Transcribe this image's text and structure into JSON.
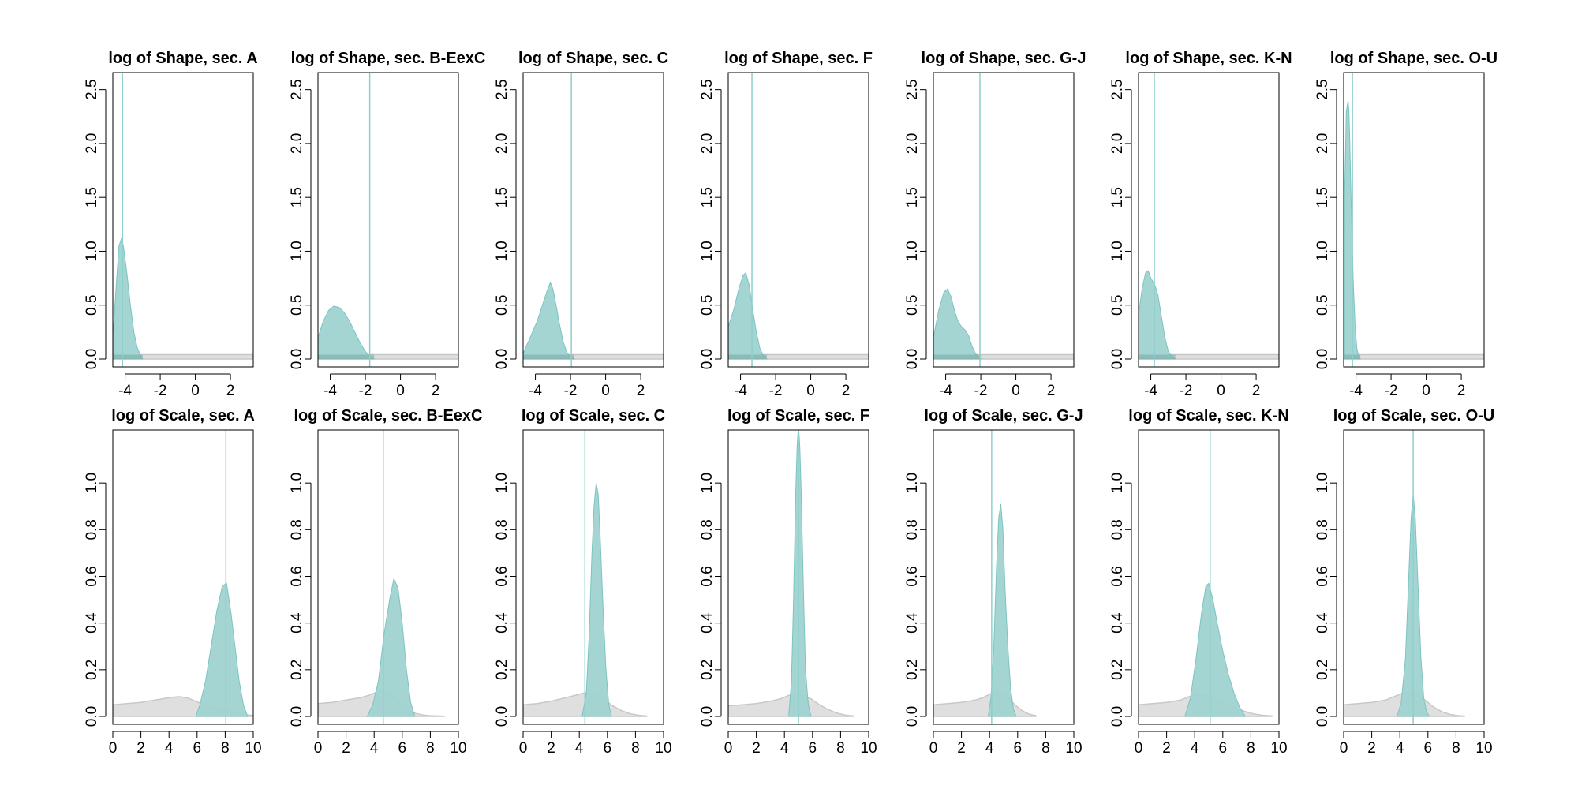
{
  "colors": {
    "posterior": "#9fd3d1",
    "posterior_edge": "#7cc4c1",
    "prior": "#d9d9d9",
    "vline": "#8ecfcc",
    "overlap": "#7aa7a5"
  },
  "chart_data": [
    {
      "type": "area",
      "title": "log of Shape, sec. A",
      "xlim": [
        -4.7,
        3.3
      ],
      "ylim": [
        0,
        2.6
      ],
      "xticks": [
        -4,
        -2,
        0,
        2
      ],
      "yticks": [
        0.0,
        0.5,
        1.0,
        1.5,
        2.0,
        2.5
      ],
      "vline": -4.15,
      "posterior": {
        "x": [
          -4.7,
          -4.5,
          -4.35,
          -4.2,
          -4.1,
          -3.9,
          -3.7,
          -3.5,
          -3.3,
          -3.1,
          -3.0
        ],
        "y": [
          0.2,
          0.7,
          1.05,
          1.12,
          1.05,
          0.8,
          0.5,
          0.25,
          0.1,
          0.03,
          0
        ]
      },
      "prior": {
        "x": [
          -4.7,
          3.3
        ],
        "y": [
          0.04,
          0.04
        ]
      }
    },
    {
      "type": "area",
      "title": "log of Shape, sec. B-EexC",
      "xlim": [
        -4.7,
        3.3
      ],
      "ylim": [
        0,
        2.6
      ],
      "xticks": [
        -4,
        -2,
        0,
        2
      ],
      "yticks": [
        0.0,
        0.5,
        1.0,
        1.5,
        2.0,
        2.5
      ],
      "vline": -1.75,
      "posterior": {
        "x": [
          -4.7,
          -4.4,
          -4.1,
          -3.8,
          -3.5,
          -3.2,
          -2.9,
          -2.6,
          -2.3,
          -2.0,
          -1.7,
          -1.5
        ],
        "y": [
          0.2,
          0.35,
          0.45,
          0.49,
          0.48,
          0.43,
          0.35,
          0.25,
          0.15,
          0.07,
          0.02,
          0
        ]
      },
      "prior": {
        "x": [
          -4.7,
          3.3
        ],
        "y": [
          0.04,
          0.04
        ]
      }
    },
    {
      "type": "area",
      "title": "log of Shape, sec. C",
      "xlim": [
        -4.7,
        3.3
      ],
      "ylim": [
        0,
        2.6
      ],
      "xticks": [
        -4,
        -2,
        0,
        2
      ],
      "yticks": [
        0.0,
        0.5,
        1.0,
        1.5,
        2.0,
        2.5
      ],
      "vline": -1.95,
      "posterior": {
        "x": [
          -4.7,
          -4.3,
          -3.9,
          -3.6,
          -3.3,
          -3.15,
          -3.0,
          -2.8,
          -2.6,
          -2.4,
          -2.2,
          -2.0,
          -1.8
        ],
        "y": [
          0.05,
          0.2,
          0.35,
          0.5,
          0.65,
          0.71,
          0.65,
          0.48,
          0.3,
          0.15,
          0.06,
          0.02,
          0
        ]
      },
      "prior": {
        "x": [
          -4.7,
          3.3
        ],
        "y": [
          0.04,
          0.04
        ]
      }
    },
    {
      "type": "area",
      "title": "log of Shape, sec. F",
      "xlim": [
        -4.7,
        3.3
      ],
      "ylim": [
        0,
        2.6
      ],
      "xticks": [
        -4,
        -2,
        0,
        2
      ],
      "yticks": [
        0.0,
        0.5,
        1.0,
        1.5,
        2.0,
        2.5
      ],
      "vline": -3.35,
      "posterior": {
        "x": [
          -4.7,
          -4.4,
          -4.1,
          -3.85,
          -3.7,
          -3.5,
          -3.3,
          -3.1,
          -2.9,
          -2.7,
          -2.5
        ],
        "y": [
          0.3,
          0.45,
          0.65,
          0.78,
          0.8,
          0.68,
          0.45,
          0.25,
          0.1,
          0.03,
          0
        ]
      },
      "prior": {
        "x": [
          -4.7,
          3.3
        ],
        "y": [
          0.04,
          0.04
        ]
      }
    },
    {
      "type": "area",
      "title": "log of Shape, sec. G-J",
      "xlim": [
        -4.7,
        3.3
      ],
      "ylim": [
        0,
        2.6
      ],
      "xticks": [
        -4,
        -2,
        0,
        2
      ],
      "yticks": [
        0.0,
        0.5,
        1.0,
        1.5,
        2.0,
        2.5
      ],
      "vline": -2.05,
      "posterior": {
        "x": [
          -4.7,
          -4.4,
          -4.1,
          -3.9,
          -3.7,
          -3.5,
          -3.3,
          -3.1,
          -2.9,
          -2.7,
          -2.5,
          -2.3,
          -2.1,
          -2.0
        ],
        "y": [
          0.2,
          0.45,
          0.62,
          0.65,
          0.58,
          0.45,
          0.35,
          0.3,
          0.27,
          0.22,
          0.12,
          0.05,
          0.01,
          0
        ]
      },
      "prior": {
        "x": [
          -4.7,
          3.3
        ],
        "y": [
          0.04,
          0.04
        ]
      }
    },
    {
      "type": "area",
      "title": "log of Shape, sec. K-N",
      "xlim": [
        -4.7,
        3.3
      ],
      "ylim": [
        0,
        2.6
      ],
      "xticks": [
        -4,
        -2,
        0,
        2
      ],
      "yticks": [
        0.0,
        0.5,
        1.0,
        1.5,
        2.0,
        2.5
      ],
      "vline": -3.8,
      "posterior": {
        "x": [
          -4.7,
          -4.5,
          -4.3,
          -4.15,
          -4.0,
          -3.8,
          -3.6,
          -3.4,
          -3.2,
          -3.0,
          -2.8,
          -2.6
        ],
        "y": [
          0.4,
          0.65,
          0.8,
          0.82,
          0.75,
          0.7,
          0.6,
          0.4,
          0.2,
          0.07,
          0.02,
          0
        ]
      },
      "prior": {
        "x": [
          -4.7,
          3.3
        ],
        "y": [
          0.04,
          0.04
        ]
      }
    },
    {
      "type": "area",
      "title": "log of Shape, sec. O-U",
      "xlim": [
        -4.7,
        3.3
      ],
      "ylim": [
        0,
        2.6
      ],
      "xticks": [
        -4,
        -2,
        0,
        2
      ],
      "yticks": [
        0.0,
        0.5,
        1.0,
        1.5,
        2.0,
        2.5
      ],
      "vline": -4.2,
      "posterior": {
        "x": [
          -4.65,
          -4.55,
          -4.45,
          -4.4,
          -4.35,
          -4.25,
          -4.15,
          -4.05,
          -3.95,
          -3.85,
          -3.75
        ],
        "y": [
          1.5,
          2.3,
          2.4,
          2.3,
          2.0,
          1.3,
          0.7,
          0.3,
          0.1,
          0.02,
          0
        ]
      },
      "prior": {
        "x": [
          -4.7,
          3.3
        ],
        "y": [
          0.04,
          0.04
        ]
      }
    },
    {
      "type": "area",
      "title": "log of Scale, sec. A",
      "xlim": [
        0,
        10
      ],
      "ylim": [
        0,
        1.2
      ],
      "xticks": [
        0,
        2,
        4,
        6,
        8,
        10
      ],
      "yticks": [
        0.0,
        0.2,
        0.4,
        0.6,
        0.8,
        1.0
      ],
      "vline": 8.05,
      "posterior": {
        "x": [
          5.9,
          6.2,
          6.6,
          7.0,
          7.4,
          7.8,
          8.1,
          8.4,
          8.7,
          9.0,
          9.3,
          9.6
        ],
        "y": [
          0,
          0.05,
          0.15,
          0.3,
          0.45,
          0.56,
          0.57,
          0.45,
          0.3,
          0.15,
          0.05,
          0
        ]
      },
      "prior": {
        "x": [
          0,
          1,
          2,
          3,
          4,
          4.7,
          5.3,
          5.9,
          6.5,
          7.1,
          7.7,
          8.3,
          8.9,
          9.5,
          10
        ],
        "y": [
          0.05,
          0.055,
          0.06,
          0.07,
          0.08,
          0.085,
          0.08,
          0.065,
          0.05,
          0.04,
          0.03,
          0.02,
          0.012,
          0.007,
          0.004
        ]
      }
    },
    {
      "type": "area",
      "title": "log of Scale, sec. B-EexC",
      "xlim": [
        0,
        10
      ],
      "ylim": [
        0,
        1.2
      ],
      "xticks": [
        0,
        2,
        4,
        6,
        8,
        10
      ],
      "yticks": [
        0.0,
        0.2,
        0.4,
        0.6,
        0.8,
        1.0
      ],
      "vline": 4.65,
      "posterior": {
        "x": [
          3.5,
          3.9,
          4.3,
          4.7,
          5.1,
          5.4,
          5.7,
          6.0,
          6.3,
          6.6,
          6.9
        ],
        "y": [
          0,
          0.05,
          0.15,
          0.35,
          0.5,
          0.59,
          0.55,
          0.4,
          0.2,
          0.06,
          0
        ]
      },
      "prior": {
        "x": [
          0,
          1,
          2,
          3,
          3.6,
          4.2,
          4.7,
          5.1,
          5.5,
          6,
          6.5,
          7,
          7.5,
          8,
          8.5,
          9
        ],
        "y": [
          0.055,
          0.06,
          0.07,
          0.08,
          0.09,
          0.105,
          0.11,
          0.1,
          0.08,
          0.05,
          0.025,
          0.012,
          0.006,
          0.003,
          0.002,
          0.001
        ]
      }
    },
    {
      "type": "area",
      "title": "log of Scale, sec. C",
      "xlim": [
        0,
        10
      ],
      "ylim": [
        0,
        1.2
      ],
      "xticks": [
        0,
        2,
        4,
        6,
        8,
        10
      ],
      "yticks": [
        0.0,
        0.2,
        0.4,
        0.6,
        0.8,
        1.0
      ],
      "vline": 4.4,
      "posterior": {
        "x": [
          4.2,
          4.5,
          4.7,
          4.9,
          5.05,
          5.2,
          5.35,
          5.5,
          5.7,
          5.9,
          6.1,
          6.3
        ],
        "y": [
          0,
          0.1,
          0.35,
          0.7,
          0.9,
          1.0,
          0.95,
          0.75,
          0.45,
          0.2,
          0.05,
          0
        ]
      },
      "prior": {
        "x": [
          0,
          1,
          2,
          3,
          3.7,
          4.3,
          4.7,
          5.2,
          5.8,
          6.4,
          7,
          7.6,
          8.2,
          8.8
        ],
        "y": [
          0.05,
          0.055,
          0.065,
          0.08,
          0.09,
          0.1,
          0.1,
          0.09,
          0.07,
          0.045,
          0.025,
          0.012,
          0.005,
          0.002
        ]
      }
    },
    {
      "type": "area",
      "title": "log of Scale, sec. F",
      "xlim": [
        0,
        10
      ],
      "ylim": [
        0,
        1.2
      ],
      "xticks": [
        0,
        2,
        4,
        6,
        8,
        10
      ],
      "yticks": [
        0.0,
        0.2,
        0.4,
        0.6,
        0.8,
        1.0
      ],
      "vline": 5.0,
      "posterior": {
        "x": [
          4.3,
          4.5,
          4.65,
          4.8,
          4.9,
          5.0,
          5.1,
          5.2,
          5.35,
          5.5,
          5.7,
          5.9
        ],
        "y": [
          0,
          0.15,
          0.5,
          0.95,
          1.15,
          1.25,
          1.15,
          0.95,
          0.55,
          0.2,
          0.05,
          0
        ]
      },
      "prior": {
        "x": [
          0,
          1,
          2,
          3,
          3.7,
          4.3,
          4.8,
          5.3,
          5.9,
          6.5,
          7.1,
          7.7,
          8.3,
          8.9
        ],
        "y": [
          0.045,
          0.05,
          0.055,
          0.065,
          0.075,
          0.09,
          0.095,
          0.09,
          0.075,
          0.05,
          0.03,
          0.015,
          0.006,
          0.002
        ]
      }
    },
    {
      "type": "area",
      "title": "log of Scale, sec. G-J",
      "xlim": [
        0,
        10
      ],
      "ylim": [
        0,
        1.2
      ],
      "xticks": [
        0,
        2,
        4,
        6,
        8,
        10
      ],
      "yticks": [
        0.0,
        0.2,
        0.4,
        0.6,
        0.8,
        1.0
      ],
      "vline": 4.15,
      "posterior": {
        "x": [
          3.9,
          4.1,
          4.3,
          4.5,
          4.65,
          4.8,
          4.95,
          5.1,
          5.3,
          5.5,
          5.7,
          5.9
        ],
        "y": [
          0,
          0.08,
          0.3,
          0.65,
          0.85,
          0.91,
          0.8,
          0.55,
          0.3,
          0.12,
          0.03,
          0
        ]
      },
      "prior": {
        "x": [
          0,
          1,
          2,
          3,
          3.5,
          4,
          4.5,
          4.9,
          5.3,
          5.8,
          6.3,
          6.8,
          7.3
        ],
        "y": [
          0.05,
          0.055,
          0.06,
          0.07,
          0.08,
          0.095,
          0.105,
          0.1,
          0.08,
          0.05,
          0.025,
          0.01,
          0.003
        ]
      }
    },
    {
      "type": "area",
      "title": "log of Scale, sec. K-N",
      "xlim": [
        0,
        10
      ],
      "ylim": [
        0,
        1.2
      ],
      "xticks": [
        0,
        2,
        4,
        6,
        8,
        10
      ],
      "yticks": [
        0.0,
        0.2,
        0.4,
        0.6,
        0.8,
        1.0
      ],
      "vline": 5.1,
      "posterior": {
        "x": [
          3.3,
          3.7,
          4.1,
          4.5,
          4.8,
          5.0,
          5.3,
          5.6,
          6.0,
          6.4,
          6.8,
          7.2,
          7.6
        ],
        "y": [
          0,
          0.08,
          0.25,
          0.45,
          0.56,
          0.57,
          0.5,
          0.4,
          0.28,
          0.18,
          0.1,
          0.04,
          0
        ]
      },
      "prior": {
        "x": [
          0,
          1,
          2,
          3,
          3.6,
          4.2,
          4.7,
          5.3,
          6,
          6.7,
          7.4,
          8.1,
          8.8,
          9.5
        ],
        "y": [
          0.05,
          0.055,
          0.06,
          0.07,
          0.085,
          0.095,
          0.09,
          0.08,
          0.06,
          0.04,
          0.025,
          0.012,
          0.005,
          0.002
        ]
      }
    },
    {
      "type": "area",
      "title": "log of Scale, sec. O-U",
      "xlim": [
        0,
        10
      ],
      "ylim": [
        0,
        1.2
      ],
      "xticks": [
        0,
        2,
        4,
        6,
        8,
        10
      ],
      "yticks": [
        0.0,
        0.2,
        0.4,
        0.6,
        0.8,
        1.0
      ],
      "vline": 4.95,
      "posterior": {
        "x": [
          3.8,
          4.1,
          4.4,
          4.6,
          4.8,
          4.95,
          5.1,
          5.3,
          5.5,
          5.7,
          5.9,
          6.1
        ],
        "y": [
          0,
          0.06,
          0.25,
          0.55,
          0.85,
          0.95,
          0.85,
          0.55,
          0.25,
          0.08,
          0.02,
          0
        ]
      },
      "prior": {
        "x": [
          0,
          1,
          2,
          3,
          3.6,
          4.2,
          4.7,
          5.2,
          5.8,
          6.4,
          7,
          7.6,
          8.2,
          8.6
        ],
        "y": [
          0.05,
          0.055,
          0.06,
          0.07,
          0.085,
          0.1,
          0.105,
          0.095,
          0.07,
          0.04,
          0.02,
          0.008,
          0.003,
          0.001
        ]
      }
    }
  ]
}
